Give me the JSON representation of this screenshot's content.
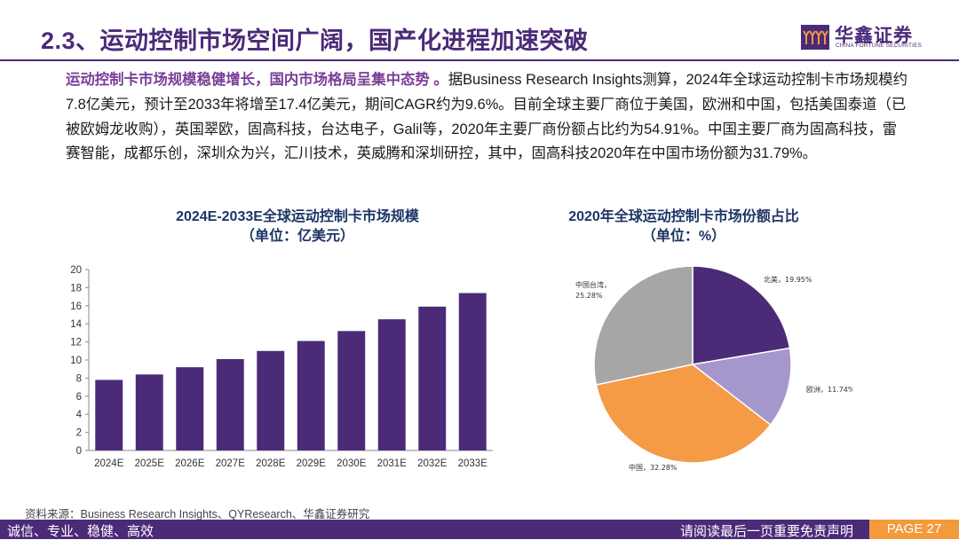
{
  "header": {
    "title": "2.3、运动控制市场空间广阔，国产化进程加速突破",
    "logo_cn": "华鑫证券",
    "logo_en": "CHINA FORTUNE SECURITIES"
  },
  "body": {
    "highlight": "运动控制卡市场规模稳健增长，国内市场格局呈集中态势 。",
    "text": "据Business Research Insights测算，2024年全球运动控制卡市场规模约7.8亿美元，预计至2033年将增至17.4亿美元，期间CAGR约为9.6%。目前全球主要厂商位于美国，欧洲和中国，包括美国泰道（已被欧姆龙收购），英国翠欧，固高科技，台达电子，Galil等，2020年主要厂商份额占比约为54.91%。中国主要厂商为固高科技，雷赛智能，成都乐创，深圳众为兴，汇川技术，英威腾和深圳研控，其中，固高科技2020年在中国市场份额为31.79%。"
  },
  "chart_data": [
    {
      "type": "bar",
      "title": "2024E-2033E全球运动控制卡市场规模",
      "subtitle": "（单位：亿美元）",
      "categories": [
        "2024E",
        "2025E",
        "2026E",
        "2027E",
        "2028E",
        "2029E",
        "2030E",
        "2031E",
        "2032E",
        "2033E"
      ],
      "values": [
        7.8,
        8.4,
        9.2,
        10.1,
        11.0,
        12.1,
        13.2,
        14.5,
        15.9,
        17.4
      ],
      "ylim": [
        0,
        20
      ],
      "yticks": [
        0,
        2,
        4,
        6,
        8,
        10,
        12,
        14,
        16,
        18,
        20
      ],
      "color": "#4b2a78"
    },
    {
      "type": "pie",
      "title": "2020年全球运动控制卡市场份额占比",
      "subtitle": "（单位：%）",
      "slices": [
        {
          "label": "北美，19.95%",
          "value": 19.95,
          "color": "#4b2a78"
        },
        {
          "label": "欧洲，11.74%",
          "value": 11.74,
          "color": "#a596cc"
        },
        {
          "label": "中国，32.28%",
          "value": 32.28,
          "color": "#f59a45"
        },
        {
          "label": "中国台湾，\n25.28%",
          "value": 25.28,
          "color": "#a6a6a6"
        }
      ]
    }
  ],
  "footer": {
    "source": "资料来源：Business Research Insights、QYResearch、华鑫证券研究",
    "left": "诚信、专业、稳健、高效",
    "right": "请阅读最后一页重要免责声明",
    "page": "PAGE 27"
  },
  "colors": {
    "brand": "#4b2a78",
    "accent": "#f39a3c"
  }
}
